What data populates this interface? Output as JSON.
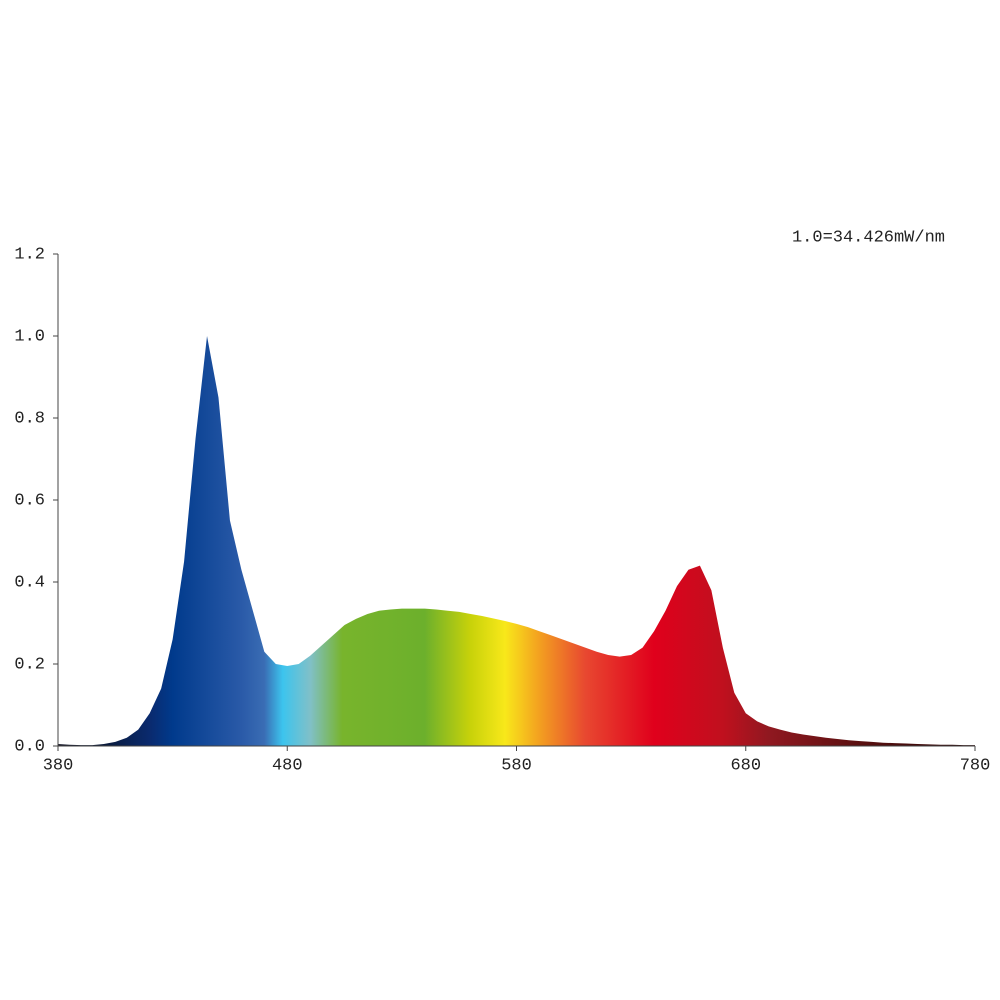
{
  "chart_data": {
    "type": "area",
    "annotation": "1.0=34.426mW/nm",
    "x": [
      380,
      385,
      390,
      395,
      400,
      405,
      410,
      415,
      420,
      425,
      430,
      435,
      440,
      445,
      450,
      455,
      460,
      465,
      470,
      475,
      480,
      485,
      490,
      495,
      500,
      505,
      510,
      515,
      520,
      525,
      530,
      535,
      540,
      545,
      550,
      555,
      560,
      565,
      570,
      575,
      580,
      585,
      590,
      595,
      600,
      605,
      610,
      615,
      620,
      625,
      630,
      635,
      640,
      645,
      650,
      655,
      660,
      665,
      670,
      675,
      680,
      685,
      690,
      695,
      700,
      705,
      710,
      715,
      720,
      725,
      730,
      735,
      740,
      745,
      750,
      755,
      760,
      765,
      770,
      775,
      780
    ],
    "values": [
      0.005,
      0.003,
      0.002,
      0.002,
      0.005,
      0.01,
      0.02,
      0.04,
      0.08,
      0.14,
      0.26,
      0.45,
      0.75,
      1.0,
      0.85,
      0.55,
      0.43,
      0.33,
      0.23,
      0.2,
      0.195,
      0.2,
      0.22,
      0.245,
      0.27,
      0.295,
      0.31,
      0.322,
      0.33,
      0.333,
      0.335,
      0.335,
      0.335,
      0.333,
      0.33,
      0.327,
      0.322,
      0.317,
      0.311,
      0.305,
      0.298,
      0.29,
      0.28,
      0.27,
      0.26,
      0.25,
      0.24,
      0.23,
      0.222,
      0.218,
      0.222,
      0.24,
      0.28,
      0.33,
      0.39,
      0.43,
      0.44,
      0.38,
      0.24,
      0.13,
      0.08,
      0.06,
      0.048,
      0.04,
      0.033,
      0.028,
      0.024,
      0.02,
      0.017,
      0.014,
      0.012,
      0.01,
      0.008,
      0.007,
      0.006,
      0.005,
      0.004,
      0.003,
      0.003,
      0.002,
      0.002
    ],
    "xlim": [
      380,
      780
    ],
    "xticks": [
      380,
      480,
      580,
      680,
      780
    ],
    "ylim": [
      0,
      1.2
    ],
    "yticks": [
      {
        "value": 0,
        "label": "0.0"
      },
      0.2,
      0.4,
      0.6,
      0.8,
      {
        "value": 1,
        "label": "1.0"
      },
      1.2
    ]
  }
}
